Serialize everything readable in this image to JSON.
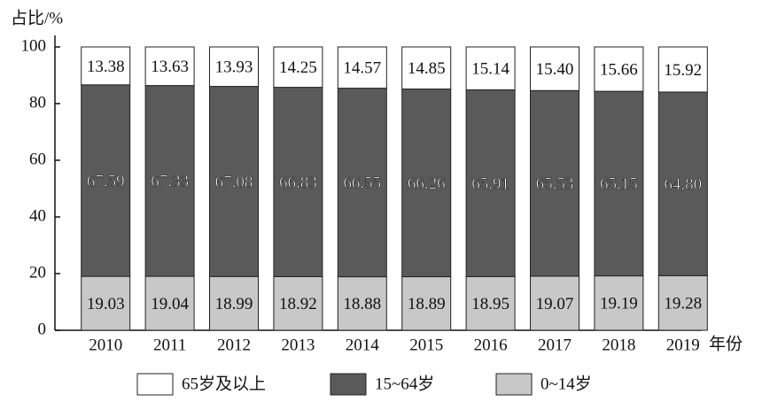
{
  "chart_data": {
    "type": "stacked_bar",
    "y_label": "占比/%",
    "x_label": "年份",
    "categories": [
      "2010",
      "2011",
      "2012",
      "2013",
      "2014",
      "2015",
      "2016",
      "2017",
      "2018",
      "2019"
    ],
    "series": [
      {
        "name": "65岁及以上",
        "color": "#ffffff",
        "values": [
          13.38,
          13.63,
          13.93,
          14.25,
          14.57,
          14.85,
          15.14,
          15.4,
          15.66,
          15.92
        ],
        "value_labels": [
          "13.38",
          "13.63",
          "13.93",
          "14.25",
          "14.57",
          "14.85",
          "15.14",
          "15.40",
          "15.66",
          "15.92"
        ]
      },
      {
        "name": "15~64岁",
        "color": "#5a5a5a",
        "values": [
          67.59,
          67.33,
          67.08,
          66.83,
          66.55,
          66.26,
          65.91,
          65.53,
          65.15,
          64.8
        ],
        "value_labels": [
          "67.59",
          "67.33",
          "67.08",
          "66.83",
          "66.55",
          "66.26",
          "65.91",
          "65.53",
          "65.15",
          "64.80"
        ]
      },
      {
        "name": "0~14岁",
        "color": "#c8c8c8",
        "values": [
          19.03,
          19.04,
          18.99,
          18.92,
          18.88,
          18.89,
          18.95,
          19.07,
          19.19,
          19.28
        ],
        "value_labels": [
          "19.03",
          "19.04",
          "18.99",
          "18.92",
          "18.88",
          "18.89",
          "18.95",
          "19.07",
          "19.19",
          "19.28"
        ]
      }
    ],
    "ylim": [
      0,
      100
    ],
    "yticks": [
      0,
      20,
      40,
      60,
      80,
      100
    ]
  }
}
